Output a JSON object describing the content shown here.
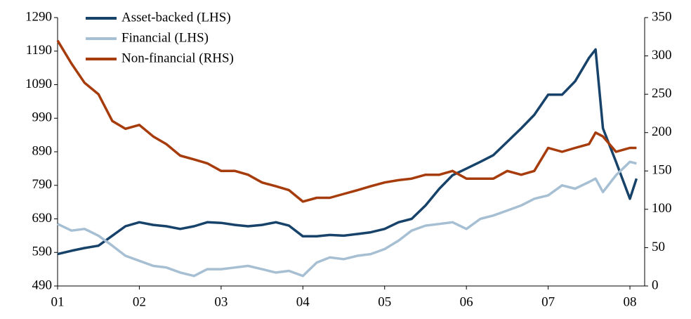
{
  "chart_data": {
    "type": "line",
    "x": [
      2001.0,
      2001.17,
      2001.33,
      2001.5,
      2001.67,
      2001.83,
      2002.0,
      2002.17,
      2002.33,
      2002.5,
      2002.67,
      2002.83,
      2003.0,
      2003.17,
      2003.33,
      2003.5,
      2003.67,
      2003.83,
      2004.0,
      2004.17,
      2004.33,
      2004.5,
      2004.67,
      2004.83,
      2005.0,
      2005.17,
      2005.33,
      2005.5,
      2005.67,
      2005.83,
      2006.0,
      2006.17,
      2006.33,
      2006.5,
      2006.67,
      2006.83,
      2007.0,
      2007.17,
      2007.33,
      2007.5,
      2007.58,
      2007.67,
      2007.83,
      2008.0,
      2008.08
    ],
    "series": [
      {
        "name": "Asset-backed (LHS)",
        "color": "#17426a",
        "axis": "y",
        "values": [
          585,
          595,
          603,
          610,
          640,
          668,
          680,
          672,
          668,
          660,
          668,
          680,
          678,
          672,
          668,
          672,
          680,
          670,
          638,
          638,
          642,
          640,
          645,
          650,
          660,
          680,
          690,
          730,
          780,
          820,
          840,
          860,
          880,
          920,
          960,
          1000,
          1060,
          1060,
          1100,
          1170,
          1195,
          960,
          860,
          750,
          810
        ]
      },
      {
        "name": "Financial (LHS)",
        "color": "#a7bfd3",
        "axis": "y",
        "values": [
          675,
          655,
          660,
          640,
          610,
          580,
          565,
          550,
          545,
          530,
          520,
          540,
          540,
          545,
          550,
          540,
          530,
          535,
          520,
          560,
          575,
          570,
          580,
          585,
          600,
          625,
          655,
          670,
          675,
          680,
          660,
          690,
          700,
          715,
          730,
          750,
          760,
          790,
          780,
          800,
          810,
          770,
          820,
          860,
          855
        ]
      },
      {
        "name": "Non-financial (RHS)",
        "color": "#a63c0b",
        "axis": "y2",
        "values": [
          320,
          290,
          265,
          250,
          215,
          205,
          210,
          195,
          185,
          170,
          165,
          160,
          150,
          150,
          145,
          135,
          130,
          125,
          110,
          115,
          115,
          120,
          125,
          130,
          135,
          138,
          140,
          145,
          145,
          150,
          140,
          140,
          140,
          150,
          145,
          150,
          180,
          175,
          180,
          185,
          200,
          195,
          175,
          180,
          180
        ]
      }
    ],
    "xlim": [
      2001,
      2008.18
    ],
    "xticks": [
      {
        "value": 2001,
        "label": "01"
      },
      {
        "value": 2002,
        "label": "02"
      },
      {
        "value": 2003,
        "label": "03"
      },
      {
        "value": 2004,
        "label": "04"
      },
      {
        "value": 2005,
        "label": "05"
      },
      {
        "value": 2006,
        "label": "06"
      },
      {
        "value": 2007,
        "label": "07"
      },
      {
        "value": 2008,
        "label": "08"
      }
    ],
    "ylim": [
      490,
      1290
    ],
    "yticks": [
      490,
      590,
      690,
      790,
      890,
      990,
      1090,
      1190,
      1290
    ],
    "y2lim": [
      0,
      350
    ],
    "y2ticks": [
      0,
      50,
      100,
      150,
      200,
      250,
      300,
      350
    ],
    "legend": "upper left"
  }
}
